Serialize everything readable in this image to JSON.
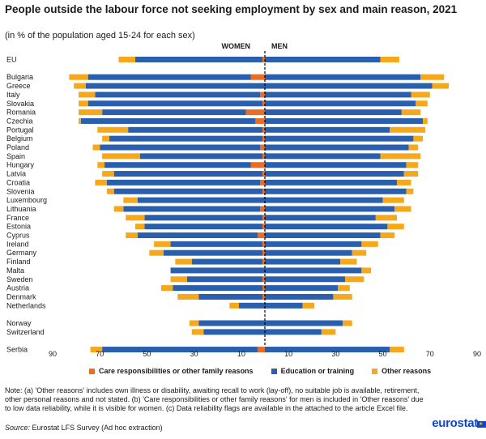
{
  "title": "People outside the labour force not seeking employment by sex and main reason, 2021",
  "subtitle": "(in % of the population aged 15-24 for each sex)",
  "legend": {
    "care": "Care responsibilities or other family reasons",
    "education": "Education or training",
    "other": "Other reasons"
  },
  "colors": {
    "care": "#e86d27",
    "education": "#2a5fae",
    "other": "#f5a81c"
  },
  "note_label": "Note:",
  "note_text": "(a) 'Other reasons' includes own illness or disability, awaiting recall to work (lay-off), no suitable job is available, retirement, other personal reasons and not stated. (b) 'Care responsibilities or other family reasons' for men is included in 'Other reasons' due to low data reliability, while it is visible for women. (c) Data reliability flags are available in the attached to the article Excel file.",
  "source_label": "Source:",
  "source_text": "Eurostat LFS Survey (Ad hoc extraction)",
  "logo": "eurostat",
  "chart_data": {
    "type": "bar",
    "orientation": "horizontal-butterfly",
    "stacked": true,
    "axis_ticks_left": [
      "90",
      "70",
      "50",
      "30",
      "10"
    ],
    "axis_ticks_right": [
      "10",
      "30",
      "50",
      "70",
      "90"
    ],
    "xlim": [
      0,
      90
    ],
    "panels": {
      "left": "WOMEN",
      "right": "MEN"
    },
    "categories": [
      "EU",
      "Bulgaria",
      "Greece",
      "Italy",
      "Slovakia",
      "Romania",
      "Czechia",
      "Portugal",
      "Belgium",
      "Poland",
      "Spain",
      "Hungary",
      "Latvia",
      "Croatia",
      "Slovenia",
      "Luxembourg",
      "Lithuania",
      "France",
      "Estonia",
      "Cyprus",
      "Ireland",
      "Germany",
      "Finland",
      "Malta",
      "Sweden",
      "Austria",
      "Denmark",
      "Netherlands",
      "Norway",
      "Switzerland",
      "Serbia"
    ],
    "group_after": [
      "EU",
      "Netherlands",
      "Switzerland"
    ],
    "women": {
      "care": [
        1,
        6,
        0,
        2,
        1,
        8,
        4,
        1,
        1,
        2,
        1,
        6,
        1,
        2,
        1,
        0,
        2,
        1,
        1,
        3,
        1,
        1,
        1,
        0,
        1,
        1,
        1,
        0,
        0,
        0,
        3
      ],
      "education": [
        54,
        69,
        76,
        70,
        74,
        61,
        74,
        57,
        65,
        68,
        52,
        62,
        63,
        65,
        63,
        54,
        58,
        50,
        50,
        51,
        39,
        42,
        30,
        40,
        32,
        38,
        27,
        11,
        28,
        26,
        66
      ],
      "other": [
        7,
        8,
        5,
        7,
        4,
        10,
        1,
        13,
        3,
        3,
        16,
        3,
        5,
        5,
        3,
        6,
        4,
        8,
        4,
        5,
        7,
        6,
        7,
        0,
        7,
        5,
        9,
        4,
        4,
        5,
        5
      ]
    },
    "men": {
      "education": [
        49,
        66,
        71,
        62,
        64,
        58,
        67,
        53,
        63,
        61,
        49,
        60,
        59,
        56,
        60,
        50,
        55,
        47,
        52,
        49,
        41,
        37,
        32,
        41,
        34,
        31,
        29,
        16,
        33,
        24,
        53
      ],
      "other": [
        8,
        10,
        7,
        8,
        5,
        8,
        2,
        15,
        4,
        4,
        17,
        5,
        6,
        6,
        3,
        9,
        7,
        9,
        7,
        6,
        7,
        6,
        7,
        4,
        8,
        5,
        8,
        5,
        4,
        6,
        6
      ]
    }
  }
}
